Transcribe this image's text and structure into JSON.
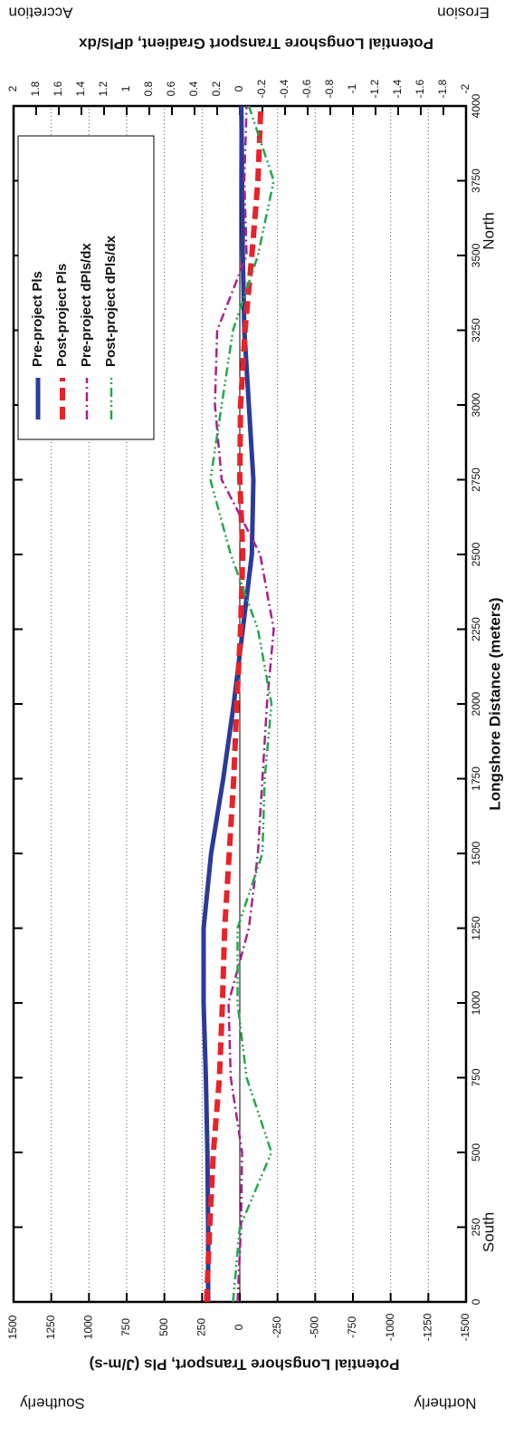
{
  "chart_data": {
    "type": "line",
    "x_label": "Longshore Distance (meters)",
    "y_label": "Potential Longshore Transport, Pls (J/m-s)",
    "y2_label": "Potential Longshore Transport Gradient, dPls/dx",
    "annotations": [
      "South",
      "North",
      "Southerly",
      "Northerly",
      "Accretion",
      "Erosion"
    ],
    "x": [
      0,
      250,
      500,
      750,
      1000,
      1250,
      1500,
      1750,
      2000,
      2250,
      2500,
      2750,
      3000,
      3250,
      3500,
      3750,
      4000
    ],
    "xlim": [
      0,
      4000
    ],
    "xticks": [
      0,
      250,
      500,
      750,
      1000,
      1250,
      1500,
      1750,
      2000,
      2250,
      2500,
      2750,
      3000,
      3250,
      3500,
      3750,
      4000
    ],
    "ylim": [
      -1500,
      1500
    ],
    "yticks": [
      1500,
      1250,
      1000,
      750,
      500,
      250,
      0,
      -250,
      -500,
      -750,
      -1000,
      -1250,
      -1500
    ],
    "y2lim": [
      -2,
      2
    ],
    "y2ticks": [
      2,
      1.8,
      1.6,
      1.4,
      1.2,
      1,
      0.8,
      0.6,
      0.4,
      0.2,
      0,
      -0.2,
      -0.4,
      -0.6,
      -0.8,
      -1,
      -1.2,
      -1.4,
      -1.6,
      -1.8,
      -2
    ],
    "grid": true,
    "legend": "upper right",
    "series": [
      {
        "name": "Pre-project Pls",
        "color": "#2b3a9a",
        "values": [
          210,
          210,
          215,
          225,
          240,
          240,
          190,
          110,
          40,
          -20,
          -80,
          -90,
          -60,
          -30,
          -20,
          -15,
          -10
        ]
      },
      {
        "name": "Post-project Pls",
        "color": "#e8232a",
        "values": [
          220,
          200,
          175,
          135,
          115,
          100,
          70,
          40,
          20,
          -5,
          -20,
          0,
          -5,
          -35,
          -80,
          -120,
          -140
        ]
      },
      {
        "name": "Pre-project dPls/dx",
        "color": "#a7208c",
        "axis": "y2",
        "values": [
          0.02,
          -0.01,
          -0.02,
          0.08,
          0.1,
          -0.08,
          -0.16,
          -0.2,
          -0.24,
          -0.3,
          -0.18,
          0.16,
          0.22,
          0.2,
          -0.06,
          -0.04,
          -0.06
        ]
      },
      {
        "name": "Post-project dPls/dx",
        "color": "#22a84a",
        "axis": "y2",
        "values": [
          0.06,
          0,
          -0.28,
          -0.06,
          0.02,
          0.02,
          -0.2,
          -0.22,
          -0.28,
          -0.16,
          0.08,
          0.26,
          0.16,
          0.06,
          -0.16,
          -0.3,
          -0.08
        ]
      }
    ]
  }
}
